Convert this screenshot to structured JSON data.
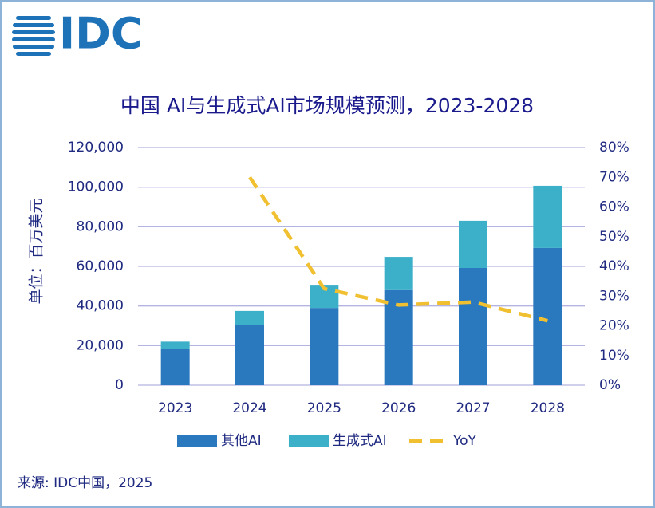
{
  "logo": "IDC",
  "source": "来源: IDC中国，2025",
  "chart_data": {
    "type": "bar",
    "title": "中国 AI与生成式AI市场规模预测，2023-2028",
    "y_label": "单位：百万美元",
    "categories": [
      "2023",
      "2024",
      "2025",
      "2026",
      "2027",
      "2028"
    ],
    "series": [
      {
        "name": "其他AI",
        "color": "#2a78bd",
        "values": [
          18500,
          30200,
          39000,
          48000,
          59200,
          69300
        ]
      },
      {
        "name": "生成式AI",
        "color": "#3cafc9",
        "values": [
          3500,
          7300,
          11700,
          16800,
          23800,
          31400
        ]
      },
      {
        "name": "YoY",
        "color": "#f0c030",
        "type": "line",
        "dashed": true,
        "axis": "y2",
        "values": [
          null,
          70,
          32.5,
          27,
          28,
          21.7
        ]
      }
    ],
    "stacked": true,
    "ylim": [
      0,
      120000
    ],
    "yticks": [
      0,
      {
        "value": 20000,
        "label": "20,000"
      },
      {
        "value": 40000,
        "label": "40,000"
      },
      {
        "value": 60000,
        "label": "60,000"
      },
      {
        "value": 80000,
        "label": "80,000"
      },
      {
        "value": 100000,
        "label": "100,000"
      },
      {
        "value": 120000,
        "label": "120,000"
      }
    ],
    "y2lim": [
      0,
      80
    ],
    "y2ticks": [
      {
        "value": 0,
        "label": "0%"
      },
      {
        "value": 10,
        "label": "10%"
      },
      {
        "value": 20,
        "label": "20%"
      },
      {
        "value": 30,
        "label": "30%"
      },
      {
        "value": 40,
        "label": "40%"
      },
      {
        "value": 50,
        "label": "50%"
      },
      {
        "value": 60,
        "label": "60%"
      },
      {
        "value": 70,
        "label": "70%"
      },
      {
        "value": 80,
        "label": "80%"
      }
    ],
    "grid": true,
    "legend": "bottom"
  }
}
